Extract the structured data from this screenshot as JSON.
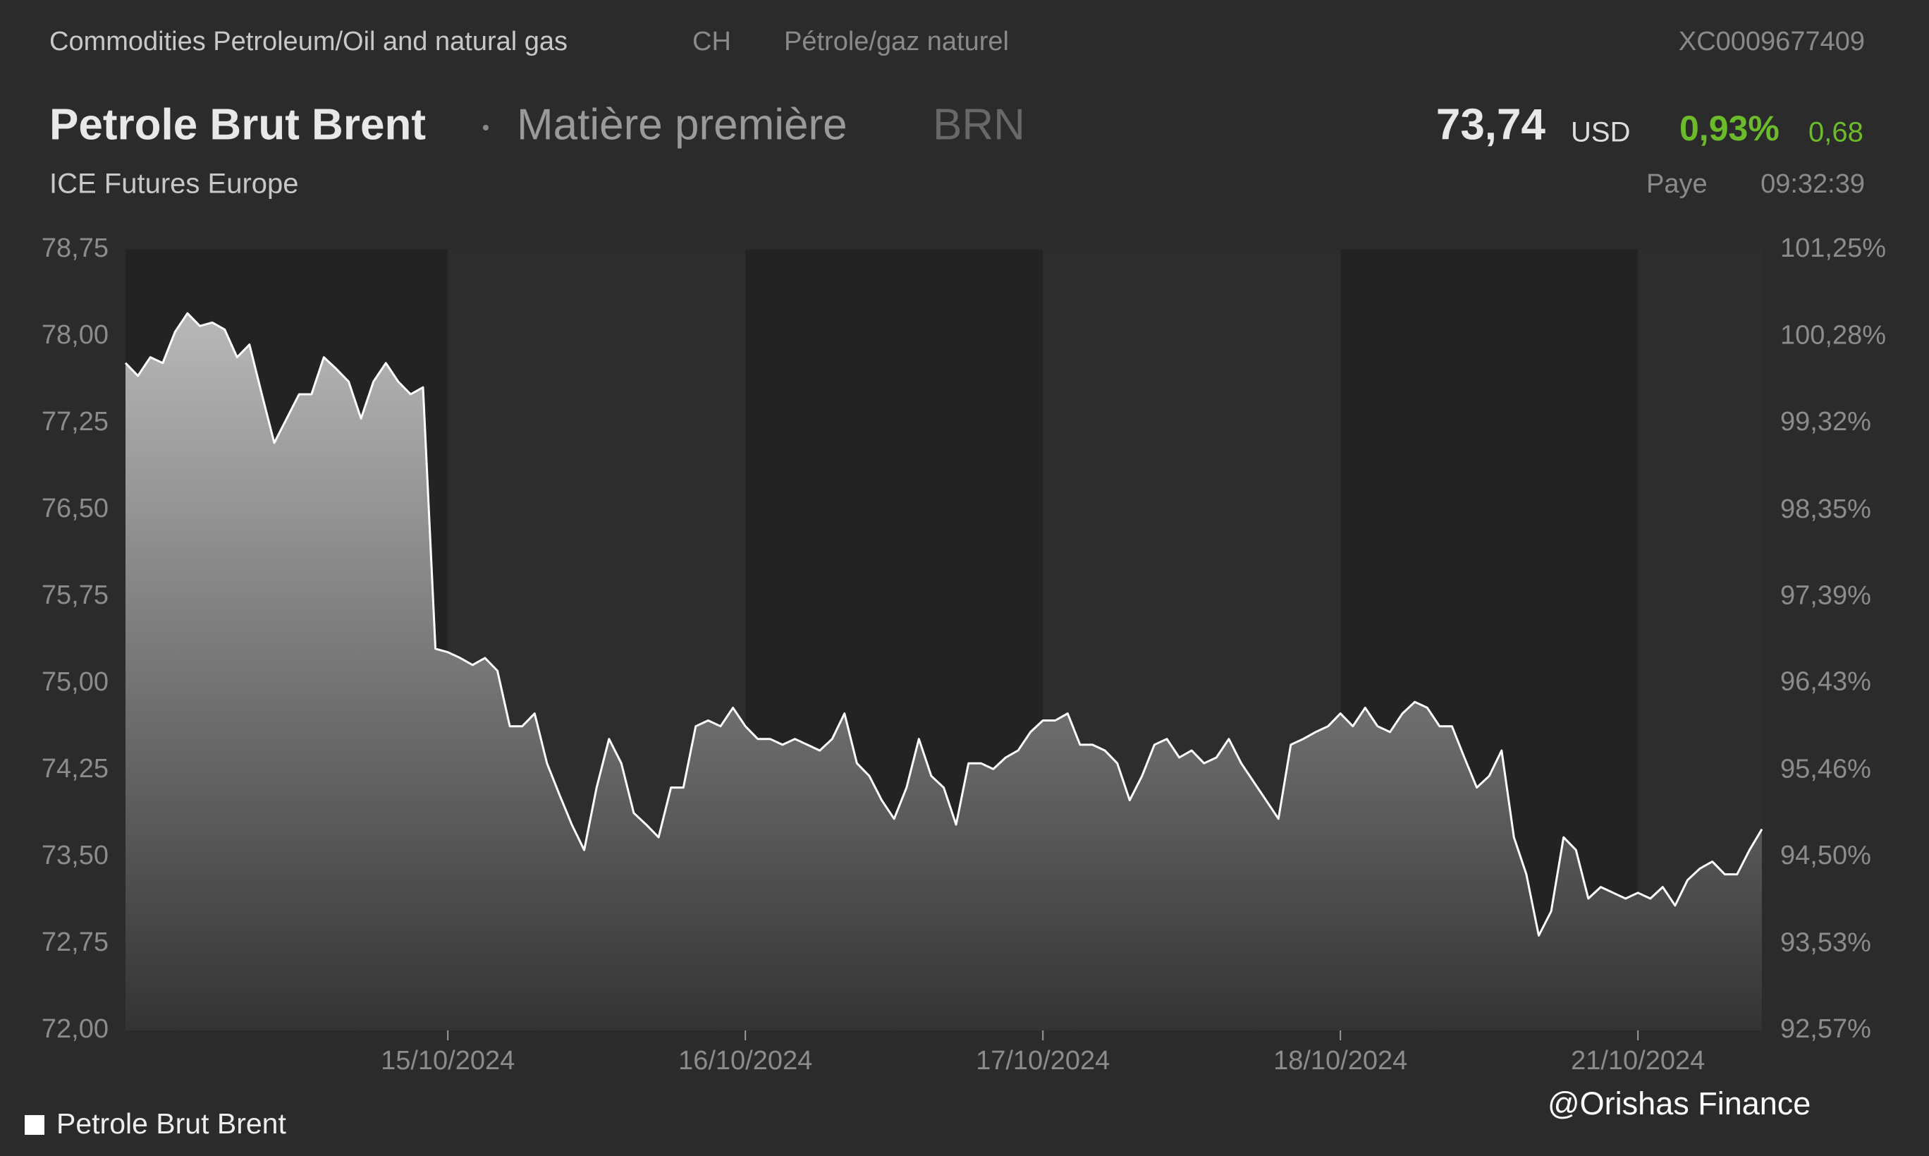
{
  "header": {
    "category": "Commodities Petroleum/Oil and natural gas",
    "country": "CH",
    "sector": "Pétrole/gaz naturel",
    "isin": "XC0009677409",
    "name": "Petrole Brut Brent",
    "asset_type": "Matière première",
    "ticker": "BRN",
    "price": "73,74",
    "currency": "USD",
    "change_pct": "0,93%",
    "change": "0,68",
    "exchange": "ICE Futures Europe",
    "status": "Paye",
    "time": "09:32:39"
  },
  "watermark": "@Orishas Finance",
  "chart_data": {
    "type": "area",
    "categories": [
      null,
      null,
      null,
      null,
      null,
      null,
      null,
      null,
      null,
      null,
      null,
      null,
      null,
      null,
      null,
      null,
      null,
      null,
      null,
      null,
      null,
      null,
      null,
      null,
      null,
      null,
      "15/10/2024",
      null,
      null,
      null,
      null,
      null,
      null,
      null,
      null,
      null,
      null,
      null,
      null,
      null,
      null,
      null,
      null,
      null,
      null,
      null,
      null,
      null,
      null,
      null,
      "16/10/2024",
      null,
      null,
      null,
      null,
      null,
      null,
      null,
      null,
      null,
      null,
      null,
      null,
      null,
      null,
      null,
      null,
      null,
      null,
      null,
      null,
      null,
      null,
      null,
      "17/10/2024",
      null,
      null,
      null,
      null,
      null,
      null,
      null,
      null,
      null,
      null,
      null,
      null,
      null,
      null,
      null,
      null,
      null,
      null,
      null,
      null,
      null,
      null,
      null,
      "18/10/2024",
      null,
      null,
      null,
      null,
      null,
      null,
      null,
      null,
      null,
      null,
      null,
      null,
      null,
      null,
      null,
      null,
      null,
      null,
      null,
      null,
      null,
      null,
      null,
      "21/10/2024",
      null,
      null,
      null,
      null,
      null,
      null,
      null,
      null,
      null,
      null
    ],
    "series": [
      {
        "name": "Petrole Brut Brent",
        "color": "#ffffff",
        "values": [
          77.77,
          77.66,
          77.82,
          77.77,
          78.04,
          78.2,
          78.09,
          78.12,
          78.06,
          77.82,
          77.93,
          77.5,
          77.08,
          77.29,
          77.5,
          77.5,
          77.82,
          77.72,
          77.61,
          77.29,
          77.61,
          77.77,
          77.61,
          77.5,
          77.56,
          75.3,
          75.27,
          75.22,
          75.16,
          75.22,
          75.11,
          74.63,
          74.63,
          74.74,
          74.31,
          74.04,
          73.78,
          73.56,
          74.1,
          74.52,
          74.31,
          73.88,
          73.78,
          73.67,
          74.1,
          74.1,
          74.63,
          74.68,
          74.63,
          74.79,
          74.63,
          74.52,
          74.52,
          74.47,
          74.52,
          74.47,
          74.42,
          74.52,
          74.74,
          74.31,
          74.2,
          73.99,
          73.83,
          74.1,
          74.52,
          74.2,
          74.1,
          73.78,
          74.31,
          74.31,
          74.26,
          74.36,
          74.42,
          74.58,
          74.68,
          74.68,
          74.74,
          74.47,
          74.47,
          74.42,
          74.31,
          73.99,
          74.2,
          74.47,
          74.52,
          74.36,
          74.42,
          74.31,
          74.36,
          74.52,
          74.31,
          74.15,
          73.99,
          73.83,
          74.47,
          74.52,
          74.58,
          74.63,
          74.74,
          74.63,
          74.79,
          74.63,
          74.58,
          74.74,
          74.84,
          74.79,
          74.63,
          74.63,
          74.36,
          74.1,
          74.2,
          74.42,
          73.67,
          73.35,
          72.82,
          73.03,
          73.67,
          73.56,
          73.14,
          73.24,
          73.19,
          73.14,
          73.19,
          73.14,
          73.24,
          73.08,
          73.3,
          73.4,
          73.46,
          73.35,
          73.35,
          73.56,
          73.74
        ]
      }
    ],
    "ylim": [
      72,
      78.75
    ],
    "yticks": [
      {
        "value": 72,
        "label": "72,00"
      },
      {
        "value": 72.75,
        "label": "72,75"
      },
      {
        "value": 73.5,
        "label": "73,50"
      },
      {
        "value": 74.25,
        "label": "74,25"
      },
      {
        "value": 75,
        "label": "75,00"
      },
      {
        "value": 75.75,
        "label": "75,75"
      },
      {
        "value": 76.5,
        "label": "76,50"
      },
      {
        "value": 77.25,
        "label": "77,25"
      },
      {
        "value": 78,
        "label": "78,00"
      },
      {
        "value": 78.75,
        "label": "78,75"
      }
    ],
    "y2lim": [
      92.57,
      101.25
    ],
    "y2ticks": [
      {
        "value": 92.57,
        "label": "92,57%"
      },
      {
        "value": 93.53,
        "label": "93,53%"
      },
      {
        "value": 94.5,
        "label": "94,50%"
      },
      {
        "value": 95.46,
        "label": "95,46%"
      },
      {
        "value": 96.43,
        "label": "96,43%"
      },
      {
        "value": 97.39,
        "label": "97,39%"
      },
      {
        "value": 98.35,
        "label": "98,35%"
      },
      {
        "value": 99.32,
        "label": "99,32%"
      },
      {
        "value": 100.28,
        "label": "100,28%"
      },
      {
        "value": 101.25,
        "label": "101,25%"
      }
    ],
    "legend": "bottom-left"
  }
}
